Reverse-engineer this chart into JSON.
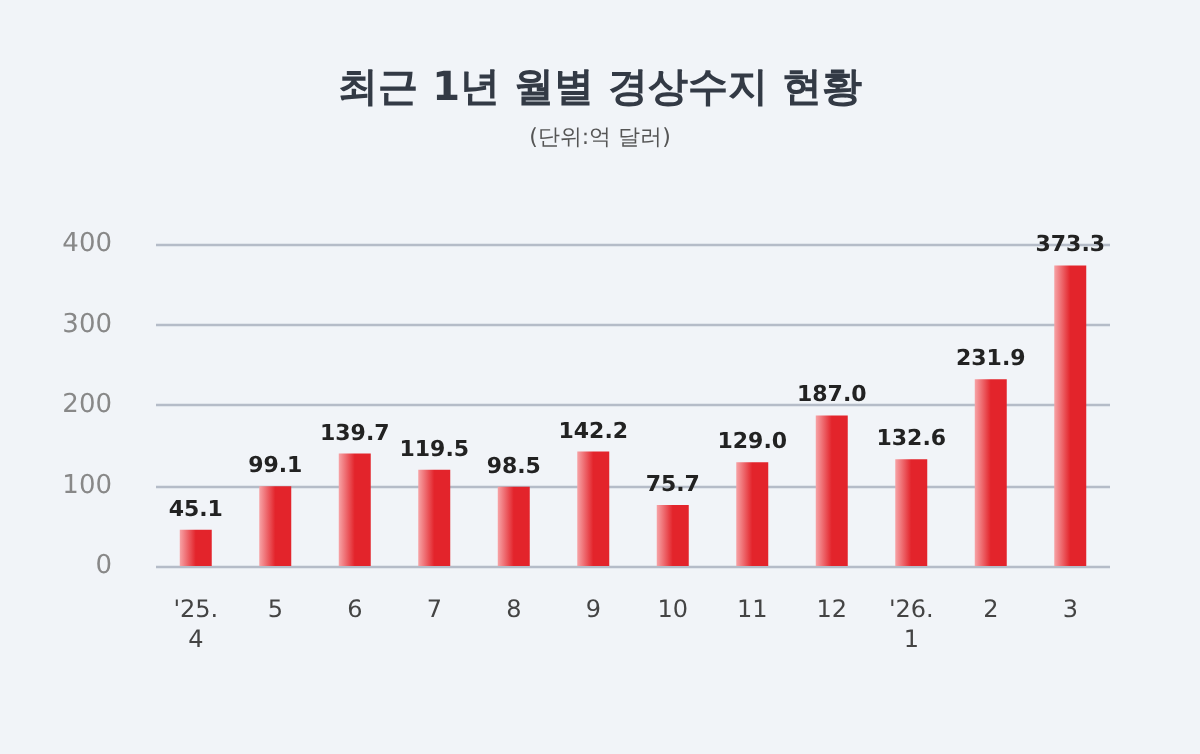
{
  "chart_data": {
    "type": "bar",
    "title": "최근 1년 월별 경상수지 현황",
    "subtitle": "(단위:억 달러)",
    "categories": [
      "'25.\n4",
      "5",
      "6",
      "7",
      "8",
      "9",
      "10",
      "11",
      "12",
      "'26.\n1",
      "2",
      "3"
    ],
    "values": [
      45.1,
      99.1,
      139.7,
      119.5,
      98.5,
      142.2,
      75.7,
      129.0,
      187.0,
      132.6,
      231.9,
      373.3
    ],
    "value_labels": [
      "45.1",
      "99.1",
      "139.7",
      "119.5",
      "98.5",
      "142.2",
      "75.7",
      "129.0",
      "187.0",
      "132.6",
      "231.9",
      "373.3"
    ],
    "color": "#e3242b",
    "ylim": [
      0,
      400
    ],
    "yticks": [
      0,
      100,
      200,
      300,
      400
    ],
    "grid": "y"
  }
}
